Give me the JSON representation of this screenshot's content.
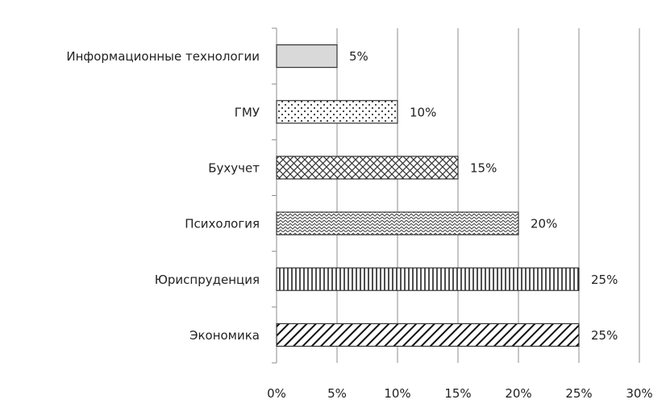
{
  "chart_data": {
    "type": "bar",
    "orientation": "horizontal",
    "title": "",
    "xlabel": "",
    "ylabel": "",
    "categories": [
      "Информационные технологии",
      "ГМУ",
      "Бухучет",
      "Психология",
      "Юриспруденция",
      "Экономика"
    ],
    "values": [
      5,
      10,
      15,
      20,
      25,
      25
    ],
    "data_labels": [
      "5%",
      "10%",
      "15%",
      "20%",
      "25%",
      "25%"
    ],
    "patterns": [
      "solid-light-gray",
      "dots",
      "crosshatch",
      "wave",
      "vertical-lines",
      "diagonal-lines"
    ],
    "xlim": [
      0,
      30
    ],
    "x_ticks": [
      0,
      5,
      10,
      15,
      20,
      25,
      30
    ],
    "x_tick_labels": [
      "0%",
      "5%",
      "10%",
      "15%",
      "20%",
      "25%",
      "30%"
    ],
    "grid": "vertical",
    "legend": "none",
    "colors": {
      "bar_stroke": "#333333",
      "grid": "#8c8c8c",
      "solid_fill": "#d9d9d9"
    }
  }
}
